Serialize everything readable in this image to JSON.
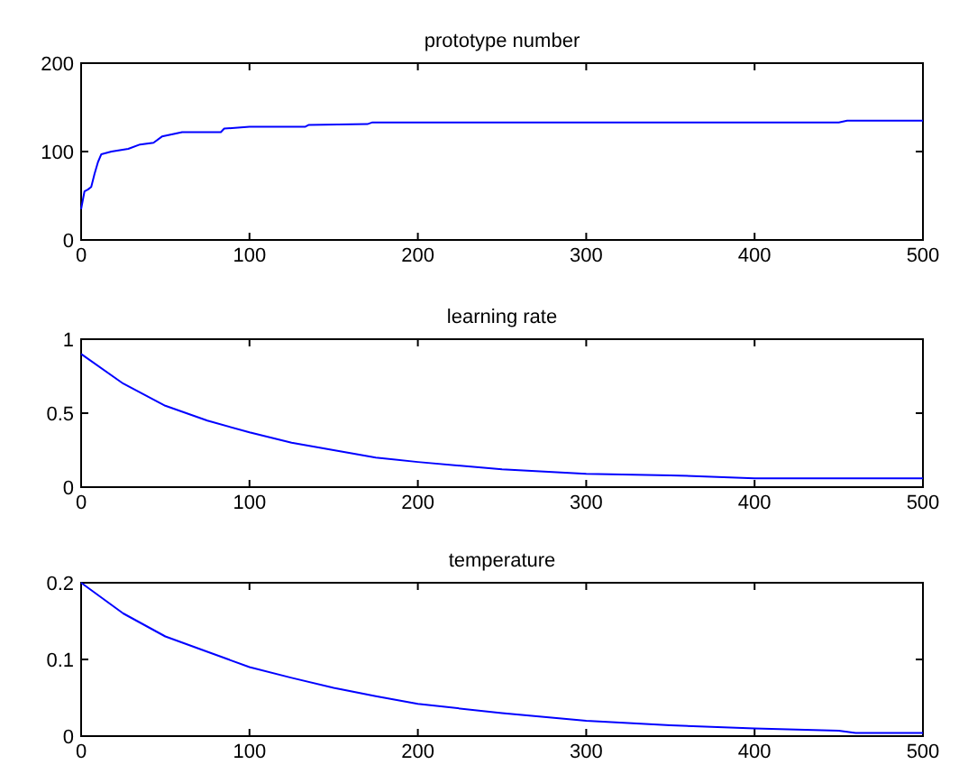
{
  "chart_data": [
    {
      "type": "line",
      "title": "prototype number",
      "xlim": [
        0,
        500
      ],
      "xticks": [
        0,
        100,
        200,
        300,
        400,
        500
      ],
      "ylim": [
        0,
        200
      ],
      "yticks": [
        0,
        100,
        200
      ],
      "grid": false,
      "series": [
        {
          "color": "#0000ff",
          "x": [
            0,
            2,
            4,
            6,
            8,
            10,
            12,
            18,
            28,
            35,
            43,
            48,
            55,
            60,
            83,
            85,
            100,
            133,
            135,
            170,
            173,
            450,
            455,
            500
          ],
          "values": [
            35,
            55,
            57,
            60,
            75,
            88,
            97,
            100,
            103,
            108,
            110,
            117,
            120,
            122,
            122,
            126,
            128,
            128,
            130,
            131,
            133,
            133,
            135,
            135
          ]
        }
      ]
    },
    {
      "type": "line",
      "title": "learning rate",
      "xlim": [
        0,
        500
      ],
      "xticks": [
        0,
        100,
        200,
        300,
        400,
        500
      ],
      "ylim": [
        0,
        1
      ],
      "yticks": [
        0,
        0.5,
        1
      ],
      "grid": false,
      "series": [
        {
          "color": "#0000ff",
          "x": [
            0,
            25,
            50,
            75,
            100,
            125,
            150,
            175,
            200,
            250,
            300,
            350,
            400,
            500
          ],
          "values": [
            0.9,
            0.7,
            0.55,
            0.45,
            0.37,
            0.3,
            0.25,
            0.2,
            0.17,
            0.12,
            0.09,
            0.08,
            0.06,
            0.06
          ]
        }
      ]
    },
    {
      "type": "line",
      "title": "temperature",
      "xlim": [
        0,
        500
      ],
      "xticks": [
        0,
        100,
        200,
        300,
        400,
        500
      ],
      "ylim": [
        0,
        0.2
      ],
      "yticks": [
        0,
        0.1,
        0.2
      ],
      "grid": false,
      "series": [
        {
          "color": "#0000ff",
          "x": [
            0,
            25,
            50,
            75,
            100,
            125,
            150,
            175,
            200,
            250,
            300,
            350,
            400,
            450,
            460,
            500
          ],
          "values": [
            0.2,
            0.16,
            0.13,
            0.11,
            0.09,
            0.076,
            0.063,
            0.052,
            0.042,
            0.03,
            0.02,
            0.014,
            0.01,
            0.007,
            0.004,
            0.004
          ]
        }
      ]
    }
  ]
}
